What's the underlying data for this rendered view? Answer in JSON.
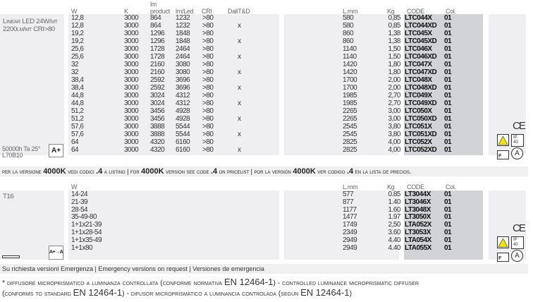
{
  "section1": {
    "product_label_line1": "Linear LED 24W/mt",
    "product_label_line2": "2200lm/mt CRI>80",
    "lifetime_line1": "50000h Ta 25°",
    "lifetime_line2": "L70B10",
    "energy_class": "A+",
    "headers": {
      "w": "W",
      "k": "K",
      "lm_product_1": "lm",
      "lm_product_2": "product",
      "lm_led": "lm/Led",
      "cri": "CRI",
      "dali": "DaliT&D",
      "lmm": "L.mm",
      "kg": "Kg",
      "code": "CODE",
      "col": "Col."
    },
    "rows": [
      {
        "w": "12,8",
        "k": "3000",
        "lm_product": "864",
        "lm_led": "1232",
        "cri": ">80",
        "dali": "",
        "lmm": "580",
        "kg": "0,85",
        "code": "LTC044X",
        "col": "01"
      },
      {
        "w": "12,8",
        "k": "3000",
        "lm_product": "864",
        "lm_led": "1232",
        "cri": ">80",
        "dali": "x",
        "lmm": "580",
        "kg": "0,85",
        "code": "LTC044XD",
        "col": "01"
      },
      {
        "w": "19,2",
        "k": "3000",
        "lm_product": "1296",
        "lm_led": "1848",
        "cri": ">80",
        "dali": "",
        "lmm": "860",
        "kg": "1,38",
        "code": "LTC045X",
        "col": "01"
      },
      {
        "w": "19,2",
        "k": "3000",
        "lm_product": "1296",
        "lm_led": "1848",
        "cri": ">80",
        "dali": "x",
        "lmm": "860",
        "kg": "1,38",
        "code": "LTC045XD",
        "col": "01"
      },
      {
        "w": "25,6",
        "k": "3000",
        "lm_product": "1728",
        "lm_led": "2464",
        "cri": ">80",
        "dali": "",
        "lmm": "1140",
        "kg": "1,50",
        "code": "LTC046X",
        "col": "01"
      },
      {
        "w": "25,6",
        "k": "3000",
        "lm_product": "1728",
        "lm_led": "2464",
        "cri": ">80",
        "dali": "x",
        "lmm": "1140",
        "kg": "1,50",
        "code": "LTC046XD",
        "col": "01"
      },
      {
        "w": "32",
        "k": "3000",
        "lm_product": "2160",
        "lm_led": "3080",
        "cri": ">80",
        "dali": "",
        "lmm": "1420",
        "kg": "1,80",
        "code": "LTC047X",
        "col": "01"
      },
      {
        "w": "32",
        "k": "3000",
        "lm_product": "2160",
        "lm_led": "3080",
        "cri": ">80",
        "dali": "x",
        "lmm": "1420",
        "kg": "1,80",
        "code": "LTC047XD",
        "col": "01"
      },
      {
        "w": "38,4",
        "k": "3000",
        "lm_product": "2592",
        "lm_led": "3696",
        "cri": ">80",
        "dali": "",
        "lmm": "1700",
        "kg": "2,00",
        "code": "LTC048X",
        "col": "01"
      },
      {
        "w": "38,4",
        "k": "3000",
        "lm_product": "2592",
        "lm_led": "3696",
        "cri": ">80",
        "dali": "x",
        "lmm": "1700",
        "kg": "2,00",
        "code": "LTC048XD",
        "col": "01"
      },
      {
        "w": "44,8",
        "k": "3000",
        "lm_product": "3024",
        "lm_led": "4312",
        "cri": ">80",
        "dali": "",
        "lmm": "1985",
        "kg": "2,70",
        "code": "LTC049X",
        "col": "01"
      },
      {
        "w": "44,8",
        "k": "3000",
        "lm_product": "3024",
        "lm_led": "4312",
        "cri": ">80",
        "dali": "x",
        "lmm": "1985",
        "kg": "2,70",
        "code": "LTC049XD",
        "col": "01"
      },
      {
        "w": "51,2",
        "k": "3000",
        "lm_product": "3456",
        "lm_led": "4928",
        "cri": ">80",
        "dali": "",
        "lmm": "2265",
        "kg": "3,00",
        "code": "LTC050X",
        "col": "01"
      },
      {
        "w": "51,2",
        "k": "3000",
        "lm_product": "3456",
        "lm_led": "4928",
        "cri": ">80",
        "dali": "x",
        "lmm": "2265",
        "kg": "3,00",
        "code": "LTC050XD",
        "col": "01"
      },
      {
        "w": "57,6",
        "k": "3000",
        "lm_product": "3888",
        "lm_led": "5544",
        "cri": ">80",
        "dali": "",
        "lmm": "2545",
        "kg": "3,80",
        "code": "LTC051X",
        "col": "01"
      },
      {
        "w": "57,6",
        "k": "3000",
        "lm_product": "3888",
        "lm_led": "5544",
        "cri": ">80",
        "dali": "x",
        "lmm": "2545",
        "kg": "3,80",
        "code": "LTC051XD",
        "col": "01"
      },
      {
        "w": "64",
        "k": "3000",
        "lm_product": "4320",
        "lm_led": "6160",
        "cri": ">80",
        "dali": "",
        "lmm": "2825",
        "kg": "4,00",
        "code": "LTC052X",
        "col": "01"
      },
      {
        "w": "64",
        "k": "3000",
        "lm_product": "4320",
        "lm_led": "6160",
        "cri": ">80",
        "dali": "x",
        "lmm": "2825",
        "kg": "4,00",
        "code": "LTC052XD",
        "col": "01"
      }
    ]
  },
  "banner_4000k": {
    "it_a": "per la versione ",
    "it_b": "4000K",
    "it_c": " vedi codici ",
    "it_d": ".4",
    "it_e": " a listino",
    "sep": " | ",
    "en_a": "for ",
    "en_b": "4000K",
    "en_c": " version  see code ",
    "en_d": ".4",
    "en_e": " on pricelist",
    "es_a": "por la versión ",
    "es_b": "4000K",
    "es_c": " ver codigo ",
    "es_d": ".4",
    "es_e": " en la lista de precios."
  },
  "section2": {
    "product_label": "T16",
    "energy_class": "A+→A",
    "headers": {
      "w": "W",
      "lmm": "L.mm",
      "kg": "Kg",
      "code": "CODE",
      "col": "Col."
    },
    "rows": [
      {
        "w": "14-24",
        "lmm": "577",
        "kg": "0.85",
        "code": "LT3044X",
        "col": "01"
      },
      {
        "w": "21-39",
        "lmm": "877",
        "kg": "1.40",
        "code": "LT3046X",
        "col": "01"
      },
      {
        "w": "28-54",
        "lmm": "1177",
        "kg": "1.60",
        "code": "LT3048X",
        "col": "01"
      },
      {
        "w": "35-49-80",
        "lmm": "1477",
        "kg": "1.97",
        "code": "LT3050X",
        "col": "01"
      },
      {
        "w": "1+1x21-39",
        "lmm": "1749",
        "kg": "2,50",
        "code": "LTA052X",
        "col": "01"
      },
      {
        "w": "1+1x28-54",
        "lmm": "2349",
        "kg": "3.60",
        "code": "LT3053X",
        "col": "01"
      },
      {
        "w": "1+1x35-49",
        "lmm": "2949",
        "kg": "4.40",
        "code": "LTA054X",
        "col": "01"
      },
      {
        "w": "1+1x80",
        "lmm": "2949",
        "kg": "4.40",
        "code": "LTA055X",
        "col": "01"
      }
    ]
  },
  "certifications": {
    "ce": "CE",
    "ip": "IP40",
    "class": "A",
    "icons": [
      "ce-mark-icon",
      "warning-light-icon",
      "ip-rating-icon",
      "f-mark-icon",
      "class-a-icon"
    ],
    "warning_color": "#f5e400"
  },
  "emergency_note": "Su richiesta versioni Emergenza   | Emergency versions on request | Versiones de emergencia",
  "footnote": {
    "line1_a": "* diffusore microprismatico a luminanza controllata (conforme normativa ",
    "line1_b": "EN 12464-1",
    "line1_c": ") - controlled luminance microprismatic diffuser",
    "line2_a": "(conforms to standard  ",
    "line2_b": "EN 12464-1",
    "line2_c": ") - difusor microprismatico a luminancia controlada (según ",
    "line2_d": "EN 12464-1",
    "line2_e": ")"
  }
}
